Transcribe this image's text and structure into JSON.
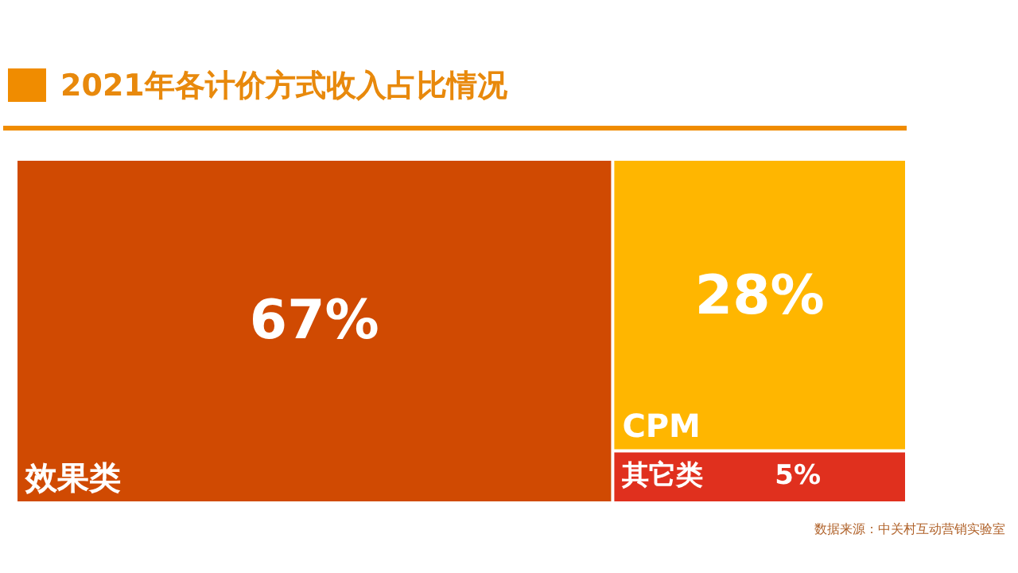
{
  "chart_data": {
    "type": "other",
    "title": "2021年各计价方式收入占比情况",
    "categories": [
      "效果类",
      "CPM",
      "其它类"
    ],
    "values": [
      67,
      28,
      5
    ],
    "colors": [
      "#d04a02",
      "#ffb600",
      "#e0301e"
    ],
    "value_labels": [
      "67%",
      "28%",
      "5%"
    ],
    "annotations": [
      "数据来源：中关村互动营销实验室"
    ]
  }
}
